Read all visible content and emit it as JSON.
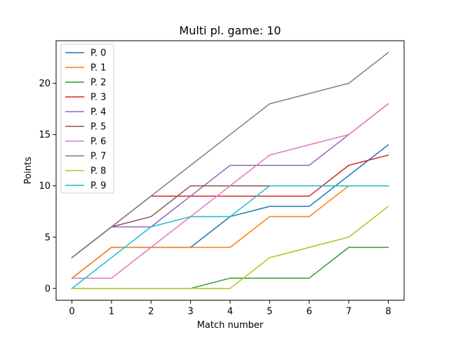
{
  "chart_data": {
    "type": "line",
    "title": "Multi pl. game: 10",
    "xlabel": "Match number",
    "ylabel": "Points",
    "x": [
      0,
      1,
      2,
      3,
      4,
      5,
      6,
      7,
      8
    ],
    "xlim": [
      -0.4,
      8.4
    ],
    "ylim": [
      -1.15,
      24.15
    ],
    "xticks": [
      0,
      1,
      2,
      3,
      4,
      5,
      6,
      7,
      8
    ],
    "yticks": [
      0,
      5,
      10,
      15,
      20
    ],
    "grid": false,
    "legend_position": "upper-left",
    "series": [
      {
        "name": "P. 0",
        "color": "#1f77b4",
        "values": [
          1,
          4,
          4,
          4,
          7,
          8,
          8,
          11,
          14
        ]
      },
      {
        "name": "P. 1",
        "color": "#ff7f0e",
        "values": [
          1,
          4,
          4,
          4,
          4,
          7,
          7,
          10,
          10
        ]
      },
      {
        "name": "P. 2",
        "color": "#2ca02c",
        "values": [
          0,
          0,
          0,
          0,
          1,
          1,
          1,
          4,
          4
        ]
      },
      {
        "name": "P. 3",
        "color": "#d62728",
        "values": [
          3,
          6,
          9,
          9,
          9,
          9,
          9,
          12,
          13
        ]
      },
      {
        "name": "P. 4",
        "color": "#9467bd",
        "values": [
          3,
          6,
          6,
          9,
          12,
          12,
          12,
          15,
          18
        ]
      },
      {
        "name": "P. 5",
        "color": "#8c564b",
        "values": [
          3,
          6,
          7,
          10,
          10,
          10,
          10,
          10,
          10
        ]
      },
      {
        "name": "P. 6",
        "color": "#e377c2",
        "values": [
          1,
          1,
          4,
          7,
          10,
          13,
          14,
          15,
          18
        ]
      },
      {
        "name": "P. 7",
        "color": "#7f7f7f",
        "values": [
          3,
          6,
          9,
          12,
          15,
          18,
          19,
          20,
          23
        ]
      },
      {
        "name": "P. 8",
        "color": "#bcbd22",
        "values": [
          0,
          0,
          0,
          0,
          0,
          3,
          4,
          5,
          8
        ]
      },
      {
        "name": "P. 9",
        "color": "#17becf",
        "values": [
          0,
          3,
          6,
          7,
          7,
          10,
          10,
          10,
          10
        ]
      }
    ]
  }
}
